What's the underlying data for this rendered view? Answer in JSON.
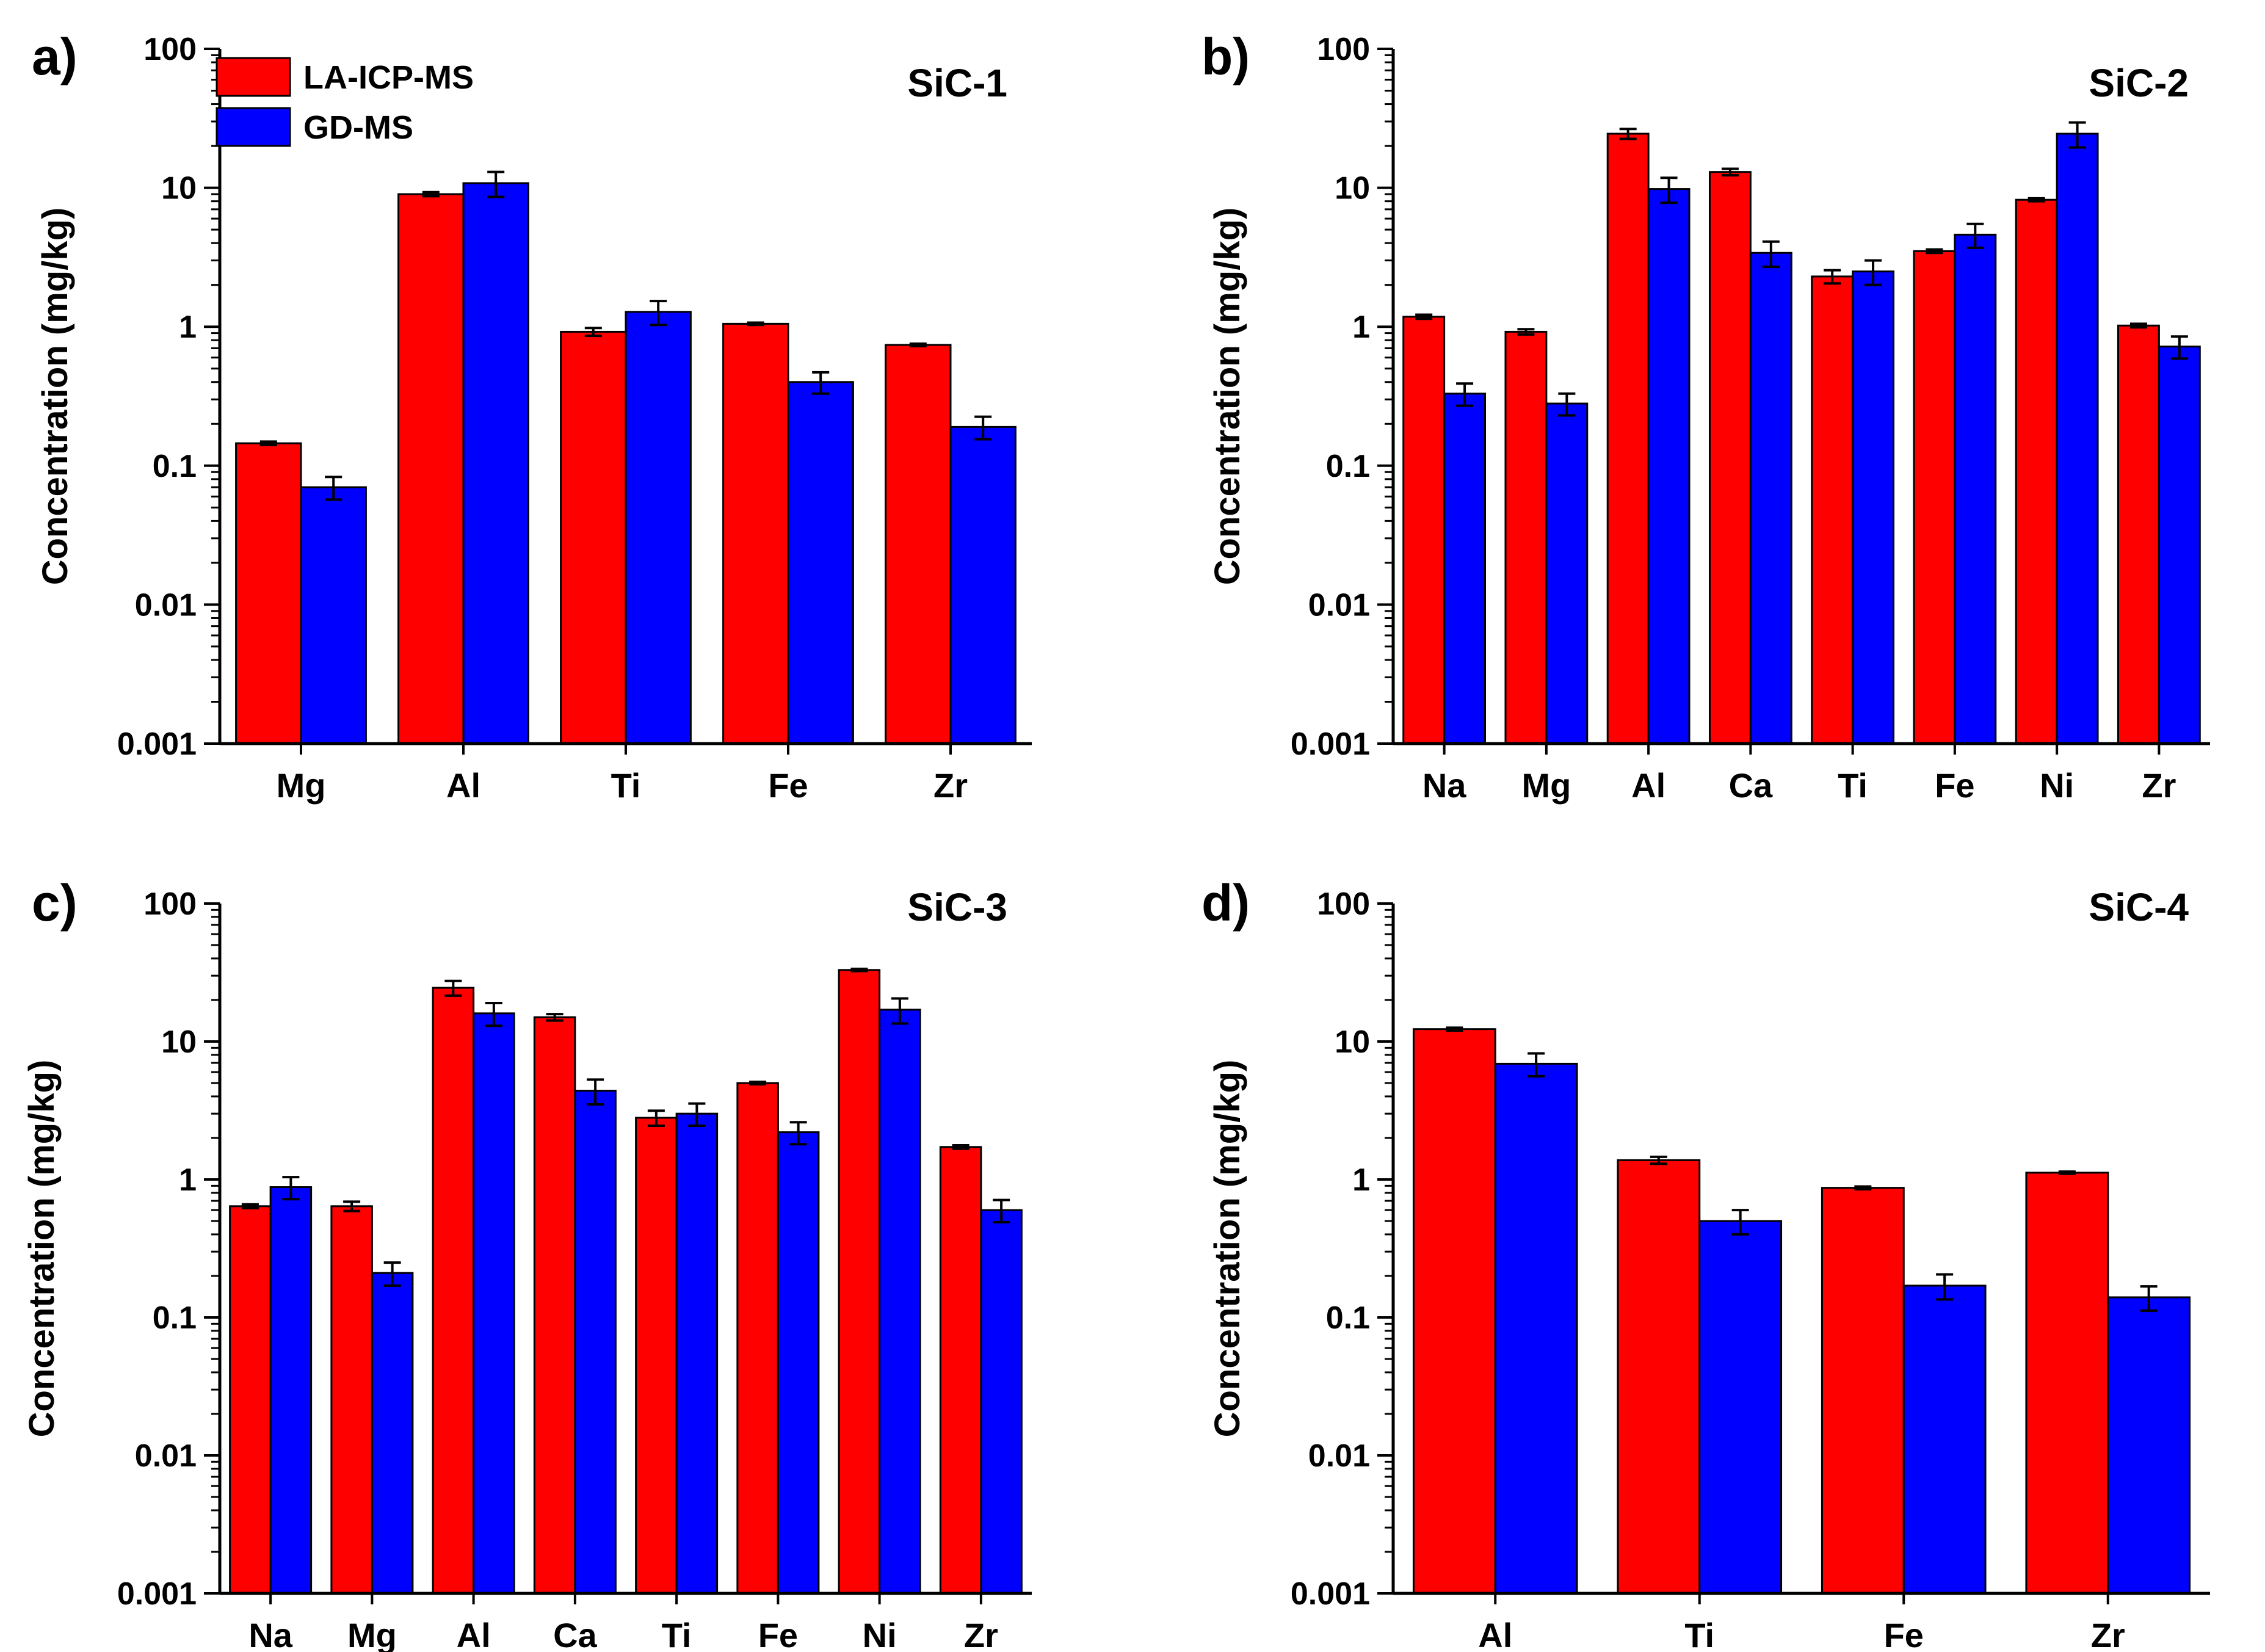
{
  "chart_data": [
    {
      "panel_label": "a)",
      "title": "SiC-1",
      "type": "bar",
      "ylabel": "Concentration (mg/kg)",
      "yscale": "log",
      "ylim": [
        0.001,
        100
      ],
      "ytick_labels": [
        "0.001",
        "0.01",
        "0.1",
        "1",
        "10",
        "100"
      ],
      "categories": [
        "Mg",
        "Al",
        "Ti",
        "Fe",
        "Zr"
      ],
      "legend": true,
      "series": [
        {
          "name": "LA-ICP-MS",
          "values": [
            0.145,
            9.0,
            0.92,
            1.05,
            0.74
          ],
          "errors": [
            0.004,
            0.3,
            0.06,
            0.02,
            0.015
          ]
        },
        {
          "name": "GD-MS",
          "values": [
            0.07,
            10.8,
            1.28,
            0.4,
            0.19
          ],
          "errors": [
            0.013,
            2.2,
            0.25,
            0.07,
            0.035
          ]
        }
      ]
    },
    {
      "panel_label": "b)",
      "title": "SiC-2",
      "type": "bar",
      "ylabel": "Concentration (mg/kg)",
      "yscale": "log",
      "ylim": [
        0.001,
        100
      ],
      "ytick_labels": [
        "0.001",
        "0.01",
        "0.1",
        "1",
        "10",
        "100"
      ],
      "categories": [
        "Na",
        "Mg",
        "Al",
        "Ca",
        "Ti",
        "Fe",
        "Ni",
        "Zr"
      ],
      "legend": false,
      "series": [
        {
          "name": "LA-ICP-MS",
          "values": [
            1.18,
            0.92,
            24.5,
            13.0,
            2.3,
            3.5,
            8.2,
            1.02
          ],
          "errors": [
            0.04,
            0.04,
            2.0,
            0.7,
            0.25,
            0.1,
            0.2,
            0.03
          ]
        },
        {
          "name": "GD-MS",
          "values": [
            0.33,
            0.28,
            9.8,
            3.4,
            2.5,
            4.6,
            24.5,
            0.72
          ],
          "errors": [
            0.06,
            0.05,
            2.0,
            0.7,
            0.5,
            0.9,
            5.0,
            0.13
          ]
        }
      ]
    },
    {
      "panel_label": "c)",
      "title": "SiC-3",
      "type": "bar",
      "ylabel": "Concentration (mg/kg)",
      "yscale": "log",
      "ylim": [
        0.001,
        100
      ],
      "ytick_labels": [
        "0.001",
        "0.01",
        "0.1",
        "1",
        "10",
        "100"
      ],
      "categories": [
        "Na",
        "Mg",
        "Al",
        "Ca",
        "Ti",
        "Fe",
        "Ni",
        "Zr"
      ],
      "legend": false,
      "series": [
        {
          "name": "LA-ICP-MS",
          "values": [
            0.64,
            0.64,
            24.5,
            15.0,
            2.8,
            5.0,
            33.0,
            1.72
          ],
          "errors": [
            0.02,
            0.05,
            3.0,
            0.8,
            0.35,
            0.1,
            0.6,
            0.05
          ]
        },
        {
          "name": "GD-MS",
          "values": [
            0.88,
            0.21,
            16.0,
            4.4,
            3.0,
            2.2,
            17.0,
            0.6
          ],
          "errors": [
            0.16,
            0.04,
            3.0,
            0.9,
            0.55,
            0.4,
            3.5,
            0.11
          ]
        }
      ]
    },
    {
      "panel_label": "d)",
      "title": "SiC-4",
      "type": "bar",
      "ylabel": "Concentration (mg/kg)",
      "yscale": "log",
      "ylim": [
        0.001,
        100
      ],
      "ytick_labels": [
        "0.001",
        "0.01",
        "0.1",
        "1",
        "10",
        "100"
      ],
      "categories": [
        "Al",
        "Ti",
        "Fe",
        "Zr"
      ],
      "legend": false,
      "series": [
        {
          "name": "LA-ICP-MS",
          "values": [
            12.3,
            1.38,
            0.87,
            1.12
          ],
          "errors": [
            0.3,
            0.08,
            0.02,
            0.02
          ]
        },
        {
          "name": "GD-MS",
          "values": [
            6.9,
            0.5,
            0.17,
            0.14
          ],
          "errors": [
            1.3,
            0.1,
            0.035,
            0.028
          ]
        }
      ]
    }
  ],
  "colors": {
    "LA-ICP-MS": "#ff0000",
    "GD-MS": "#0000ff",
    "axis": "#000000"
  }
}
